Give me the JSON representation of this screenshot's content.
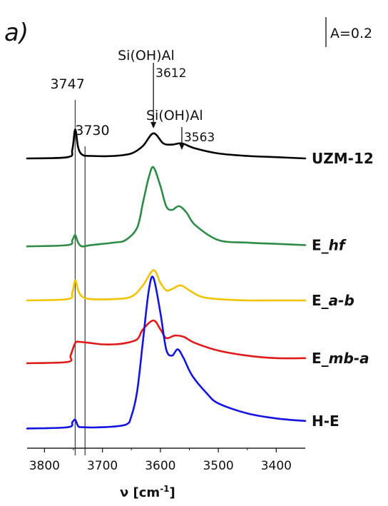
{
  "chart_data": {
    "type": "line",
    "panel_label": "a)",
    "scale_bar_label": "A=0.2",
    "xlabel": "ν [cm",
    "xlabel_sup": "-1",
    "xlabel_close": "]",
    "xlim": [
      3830,
      3350
    ],
    "x_reversed": true,
    "x_ticks": [
      3800,
      3700,
      3600,
      3500,
      3400
    ],
    "x_tick_labels": [
      "3800",
      "3700",
      "3600",
      "3500",
      "3400"
    ],
    "y_axis_shown": false,
    "grid": false,
    "legend": "series labels printed to the right of each trace",
    "reference_lines": [
      {
        "x": 3747,
        "label": "3747"
      },
      {
        "x": 3730,
        "label": "3730"
      }
    ],
    "annotations": [
      {
        "x": 3612,
        "title": "Si(OH)Al",
        "label": "3612"
      },
      {
        "x": 3563,
        "title": "Si(OH)Al",
        "label": "3563"
      }
    ],
    "series": [
      {
        "name": "UZM-12",
        "color": "#000000",
        "x": [
          3830,
          3760,
          3752,
          3747,
          3742,
          3735,
          3720,
          3680,
          3650,
          3630,
          3612,
          3595,
          3580,
          3563,
          3540,
          3500,
          3450,
          3400,
          3350
        ],
        "y": [
          2.25,
          2.26,
          2.32,
          2.48,
          2.34,
          2.28,
          2.27,
          2.27,
          2.29,
          2.35,
          2.45,
          2.37,
          2.36,
          2.37,
          2.33,
          2.29,
          2.27,
          2.26,
          2.25
        ]
      },
      {
        "name": "E_hf",
        "color": "#2e8b45",
        "x": [
          3830,
          3760,
          3752,
          3747,
          3742,
          3735,
          3720,
          3680,
          3660,
          3640,
          3630,
          3620,
          3612,
          3600,
          3590,
          3580,
          3568,
          3555,
          3540,
          3500,
          3450,
          3400,
          3350
        ],
        "y": [
          1.55,
          1.56,
          1.6,
          1.64,
          1.58,
          1.55,
          1.56,
          1.58,
          1.6,
          1.7,
          1.9,
          2.1,
          2.18,
          2.03,
          1.87,
          1.84,
          1.87,
          1.82,
          1.72,
          1.6,
          1.58,
          1.57,
          1.56
        ]
      },
      {
        "name": "E_a-b",
        "color": "#f2c400",
        "x": [
          3830,
          3760,
          3752,
          3747,
          3742,
          3735,
          3720,
          3680,
          3650,
          3630,
          3612,
          3600,
          3590,
          3580,
          3565,
          3550,
          3530,
          3500,
          3450,
          3400,
          3350
        ],
        "y": [
          1.12,
          1.13,
          1.18,
          1.28,
          1.2,
          1.15,
          1.13,
          1.13,
          1.15,
          1.24,
          1.36,
          1.26,
          1.2,
          1.21,
          1.24,
          1.2,
          1.15,
          1.13,
          1.12,
          1.12,
          1.12
        ]
      },
      {
        "name": "E_mb-a",
        "color": "#e01a1a",
        "x": [
          3830,
          3760,
          3755,
          3747,
          3740,
          3720,
          3700,
          3680,
          3660,
          3640,
          3630,
          3612,
          3600,
          3590,
          3575,
          3560,
          3540,
          3500,
          3450,
          3400,
          3350
        ],
        "y": [
          0.62,
          0.63,
          0.68,
          0.78,
          0.79,
          0.78,
          0.77,
          0.77,
          0.78,
          0.81,
          0.89,
          0.96,
          0.89,
          0.82,
          0.84,
          0.83,
          0.78,
          0.72,
          0.68,
          0.66,
          0.66
        ]
      },
      {
        "name": "H-E",
        "color": "#1414e0",
        "x": [
          3830,
          3760,
          3752,
          3747,
          3742,
          3735,
          3700,
          3660,
          3650,
          3640,
          3630,
          3620,
          3612,
          3600,
          3590,
          3580,
          3570,
          3560,
          3545,
          3520,
          3500,
          3450,
          3400,
          3350
        ],
        "y": [
          0.1,
          0.11,
          0.15,
          0.17,
          0.12,
          0.11,
          0.11,
          0.13,
          0.2,
          0.4,
          0.8,
          1.2,
          1.3,
          1.02,
          0.73,
          0.68,
          0.73,
          0.66,
          0.52,
          0.38,
          0.3,
          0.22,
          0.18,
          0.16
        ]
      }
    ]
  }
}
